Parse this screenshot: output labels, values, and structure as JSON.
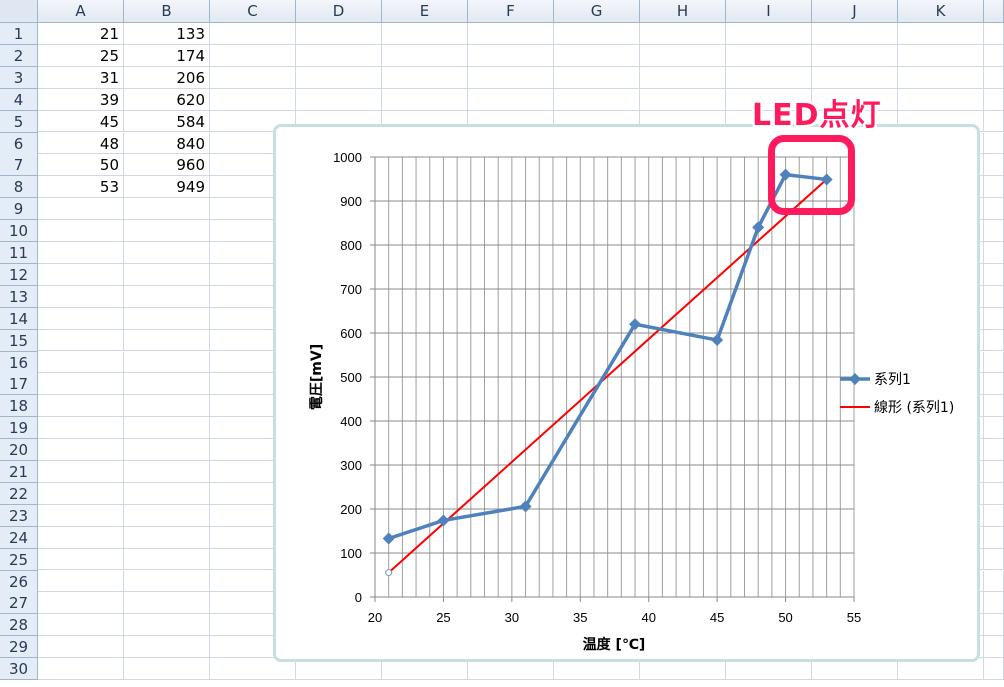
{
  "sheet": {
    "columns": [
      "A",
      "B",
      "C",
      "D",
      "E",
      "F",
      "G",
      "H",
      "I",
      "J",
      "K"
    ],
    "row_count": 30,
    "rows": [
      [
        "21",
        "133"
      ],
      [
        "25",
        "174"
      ],
      [
        "31",
        "206"
      ],
      [
        "39",
        "620"
      ],
      [
        "45",
        "584"
      ],
      [
        "48",
        "840"
      ],
      [
        "50",
        "960"
      ],
      [
        "53",
        "949"
      ]
    ]
  },
  "annotation": {
    "text": "LED点灯",
    "color": "#ff1a5e"
  },
  "chart_data": {
    "type": "scatter",
    "xlabel": "温度 [℃]",
    "ylabel": "電圧[mV]",
    "xlim": [
      20,
      55
    ],
    "ylim": [
      0,
      1000
    ],
    "xticks": [
      "20",
      "25",
      "30",
      "35",
      "40",
      "45",
      "50",
      "55"
    ],
    "yticks": [
      "0",
      "100",
      "200",
      "300",
      "400",
      "500",
      "600",
      "700",
      "800",
      "900",
      "1000"
    ],
    "grid": true,
    "legend_position": "right",
    "series": [
      {
        "name": "系列1",
        "color": "#4f81bd",
        "marker": "diamond",
        "x": [
          21,
          25,
          31,
          39,
          45,
          48,
          50,
          53
        ],
        "y": [
          133,
          174,
          206,
          620,
          584,
          840,
          960,
          949
        ]
      },
      {
        "name": "線形 (系列1)",
        "color": "#ff0000",
        "trendline": "linear"
      }
    ]
  }
}
